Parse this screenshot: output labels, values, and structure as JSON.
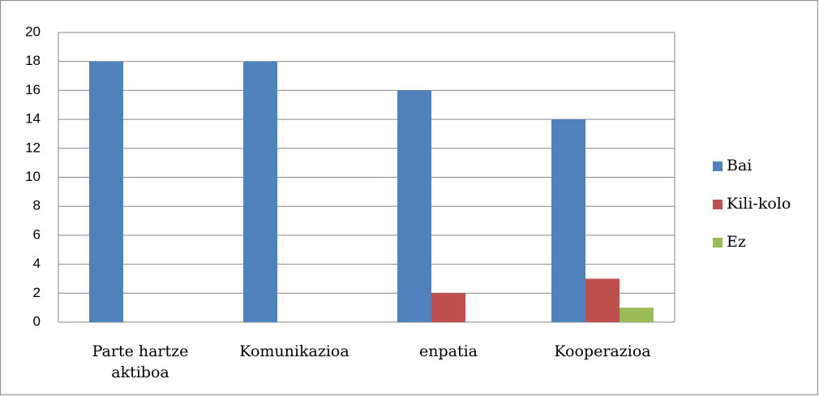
{
  "chart_data": {
    "type": "bar",
    "categories": [
      "Parte hartze aktiboa",
      "Komunikazioa",
      "enpatia",
      "Kooperazioa"
    ],
    "series": [
      {
        "name": "Bai",
        "color": "#4f81bd",
        "values": [
          18,
          18,
          16,
          14
        ]
      },
      {
        "name": "Kili-kolo",
        "color": "#c0504d",
        "values": [
          0,
          0,
          2,
          3
        ]
      },
      {
        "name": "Ez",
        "color": "#9bbb59",
        "values": [
          0,
          0,
          0,
          1
        ]
      }
    ],
    "ylim": [
      0,
      20
    ],
    "yticks": [
      0,
      2,
      4,
      6,
      8,
      10,
      12,
      14,
      16,
      18,
      20
    ],
    "grid": true,
    "legend": "right"
  }
}
